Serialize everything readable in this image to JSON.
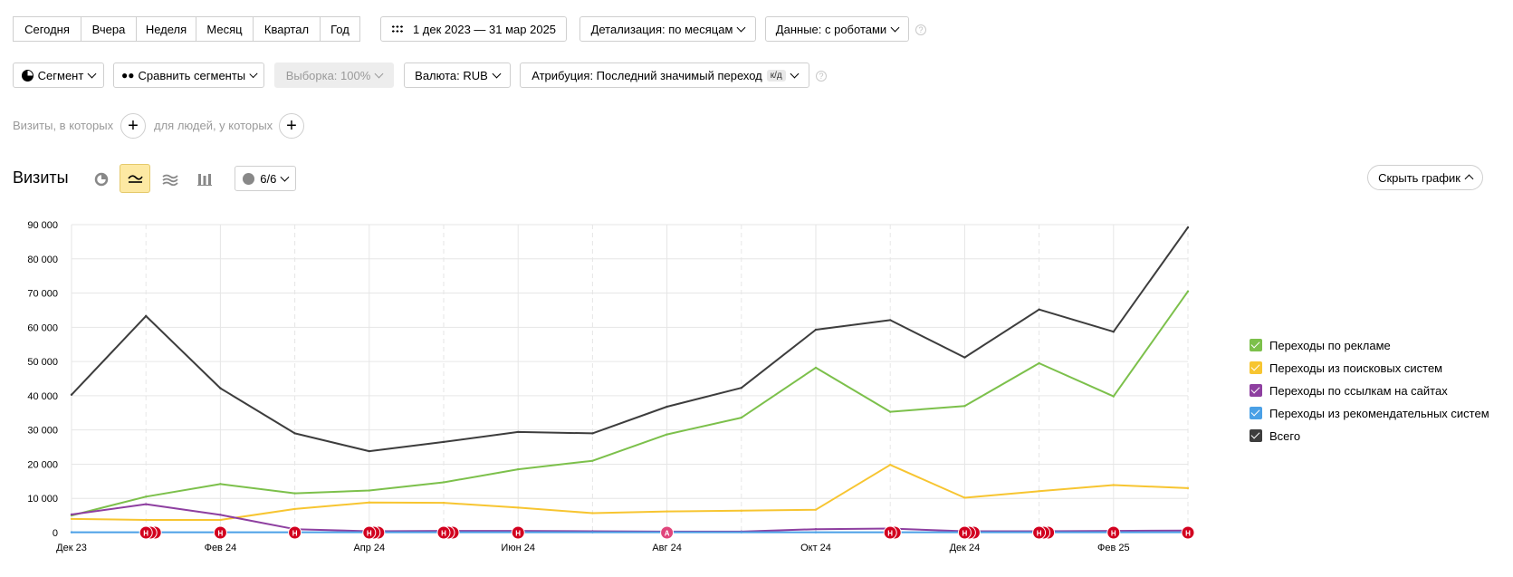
{
  "periods": [
    "Сегодня",
    "Вчера",
    "Неделя",
    "Месяц",
    "Квартал",
    "Год"
  ],
  "date_range": "1 дек 2023 — 31 мар 2025",
  "detail_label": "Детализация: по месяцам",
  "data_label": "Данные: с роботами",
  "segment_label": "Сегмент",
  "compare_label": "Сравнить сегменты",
  "sample_label": "Выборка: 100%",
  "currency_label": "Валюта: RUB",
  "attribution_label": "Атрибуция: Последний значимый переход",
  "attribution_tag": "к/д",
  "visits_filter_label": "Визиты, в которых",
  "people_filter_label": "для людей, у которых",
  "chart_title": "Визиты",
  "notes_count": "6/6",
  "hide_chart_label": "Скрыть график",
  "colors": {
    "green": "#7cc04b",
    "yellow": "#f7c531",
    "purple": "#8e3fa0",
    "blue": "#4aa0e6",
    "dark": "#3d3d3d",
    "marker_red": "#d2001f",
    "marker_pink": "#e0457b",
    "active_view": "#fde9a3"
  },
  "chart_data": {
    "type": "line",
    "x": [
      "Дек 23",
      "Янв 24",
      "Фев 24",
      "Мар 24",
      "Апр 24",
      "Май 24",
      "Июн 24",
      "Июл 24",
      "Авг 24",
      "Сен 24",
      "Окт 24",
      "Ноя 24",
      "Дек 24",
      "Янв 25",
      "Фев 25",
      "Мар 25"
    ],
    "x_tick_labels": [
      "Дек 23",
      "Фев 24",
      "Апр 24",
      "Июн 24",
      "Авг 24",
      "Окт 24",
      "Дек 24",
      "Фев 25"
    ],
    "y_ticks": [
      "0",
      "10 000",
      "20 000",
      "30 000",
      "40 000",
      "50 000",
      "60 000",
      "70 000",
      "80 000",
      "90 000"
    ],
    "ylim": [
      0,
      90000
    ],
    "grid": true,
    "legend_position": "right",
    "series": [
      {
        "name": "Переходы по рекламе",
        "color": "#7cc04b",
        "values": [
          5000,
          10500,
          14200,
          11500,
          12300,
          14700,
          18500,
          21000,
          28700,
          33600,
          48200,
          35300,
          37000,
          49500,
          39800,
          70500
        ]
      },
      {
        "name": "Переходы из поисковых систем",
        "color": "#f7c531",
        "values": [
          4000,
          3700,
          3700,
          6900,
          8800,
          8700,
          7300,
          5700,
          6200,
          6400,
          6700,
          19800,
          10200,
          12100,
          13900,
          13000
        ]
      },
      {
        "name": "Переходы по ссылкам на сайтах",
        "color": "#8e3fa0",
        "values": [
          5300,
          8300,
          5200,
          1000,
          400,
          500,
          500,
          400,
          300,
          300,
          1000,
          1200,
          400,
          400,
          500,
          600
        ]
      },
      {
        "name": "Переходы из рекомендательных систем",
        "color": "#4aa0e6",
        "values": [
          100,
          100,
          100,
          100,
          100,
          100,
          100,
          100,
          100,
          100,
          100,
          100,
          100,
          100,
          100,
          100
        ]
      },
      {
        "name": "Всего",
        "color": "#3d3d3d",
        "values": [
          40300,
          63300,
          42200,
          29000,
          23800,
          26500,
          29400,
          29000,
          36800,
          42300,
          59300,
          62100,
          51200,
          65200,
          58700,
          89200
        ]
      }
    ],
    "annotations": [
      {
        "label": "Н",
        "x": "Янв 24",
        "count": 3,
        "color": "#d2001f"
      },
      {
        "label": "Н",
        "x": "Фев 24",
        "count": 1,
        "color": "#d2001f"
      },
      {
        "label": "Н",
        "x": "Мар 24",
        "count": 1,
        "color": "#d2001f"
      },
      {
        "label": "Н",
        "x": "Апр 24",
        "count": 3,
        "color": "#d2001f"
      },
      {
        "label": "Н",
        "x": "Май 24",
        "count": 3,
        "color": "#d2001f"
      },
      {
        "label": "Н",
        "x": "Июн 24",
        "count": 1,
        "color": "#d2001f"
      },
      {
        "label": "А",
        "x": "Авг 24",
        "count": 1,
        "color": "#e0457b"
      },
      {
        "label": "Н",
        "x": "Ноя 24",
        "count": 2,
        "color": "#d2001f"
      },
      {
        "label": "Н",
        "x": "Дек 24",
        "count": 3,
        "color": "#d2001f"
      },
      {
        "label": "Н",
        "x": "Янв 25",
        "count": 3,
        "color": "#d2001f"
      },
      {
        "label": "Н",
        "x": "Фев 25",
        "count": 1,
        "color": "#d2001f"
      },
      {
        "label": "Н",
        "x": "Мар 25",
        "count": 1,
        "color": "#d2001f"
      }
    ]
  }
}
